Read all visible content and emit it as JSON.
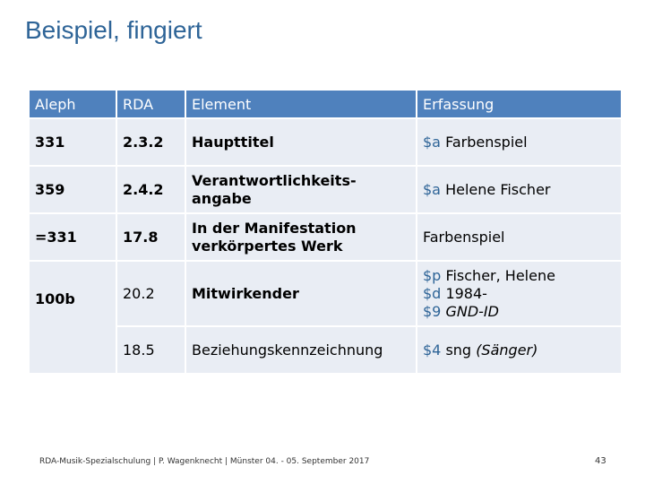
{
  "title": "Beispiel, fingiert",
  "table": {
    "headers": [
      "Aleph",
      "RDA",
      "Element",
      "Erfassung"
    ],
    "rows": [
      {
        "aleph": "331",
        "rda": "2.3.2",
        "element": "Haupttitel",
        "erfassung": [
          {
            "code": "$a",
            "text": "Farbenspiel"
          }
        ]
      },
      {
        "aleph": "359",
        "rda": "2.4.2",
        "element": "Verantwortlichkeits- angabe",
        "erfassung": [
          {
            "code": "$a",
            "text": "Helene Fischer"
          }
        ]
      },
      {
        "aleph": "=331",
        "rda": "17.8",
        "element": "In der Manifestation verkörpertes Werk",
        "erfassung": [
          {
            "code": "",
            "text": "Farbenspiel"
          }
        ]
      },
      {
        "aleph": "100b",
        "rda": "20.2",
        "element": "Mitwirkender",
        "erfassung": [
          {
            "code": "$p",
            "text": "Fischer, Helene"
          },
          {
            "code": "$d",
            "text": "1984-"
          },
          {
            "code": "$9",
            "text": "GND-ID"
          }
        ]
      },
      {
        "aleph": "",
        "rda": "18.5",
        "element": "Beziehungskennzeichnung",
        "erfassung": [
          {
            "code": "$4",
            "text": "sng",
            "extra": "(Sänger)"
          }
        ]
      }
    ]
  },
  "footer": "RDA-Musik-Spezialschulung | P. Wagenknecht | Münster 04. - 05. September 2017",
  "page_number": "43",
  "colors": {
    "title": "#2e6497",
    "header_bg": "#4f81bd",
    "cell_bg": "#e9edf4",
    "code": "#2e6497"
  }
}
